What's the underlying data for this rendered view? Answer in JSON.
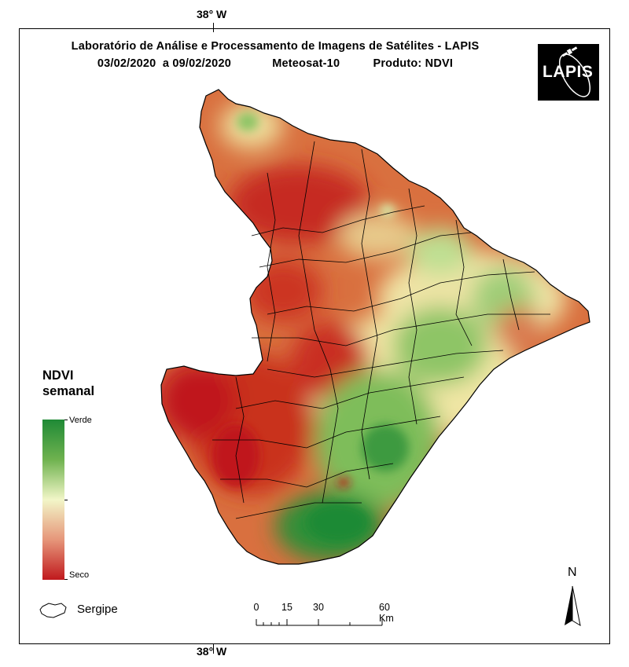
{
  "header": {
    "title_line1": "Laboratório de Análise e Processamento de Imagens de Satélites - LAPIS",
    "date_range": "03/02/2020  a 09/02/2020",
    "satellite": "Meteosat-10",
    "product": "Produto: NDVI"
  },
  "logo": {
    "text": "LAPIS"
  },
  "graticule": {
    "top_label": "38° W",
    "bottom_label": "38° W"
  },
  "legend": {
    "title_line1": "NDVI",
    "title_line2": "semanal",
    "high_label": "Verde",
    "low_label": "Seco",
    "colors": [
      "#1f8a36",
      "#6fb24f",
      "#f2f6c8",
      "#e6967a",
      "#c0191d"
    ]
  },
  "layer_legend": {
    "label": "Sergipe"
  },
  "scale_bar": {
    "labels": [
      "0",
      "15",
      "30",
      "60 Km"
    ],
    "values_km": [
      0,
      15,
      30,
      60
    ]
  },
  "north_arrow": {
    "label": "N"
  }
}
